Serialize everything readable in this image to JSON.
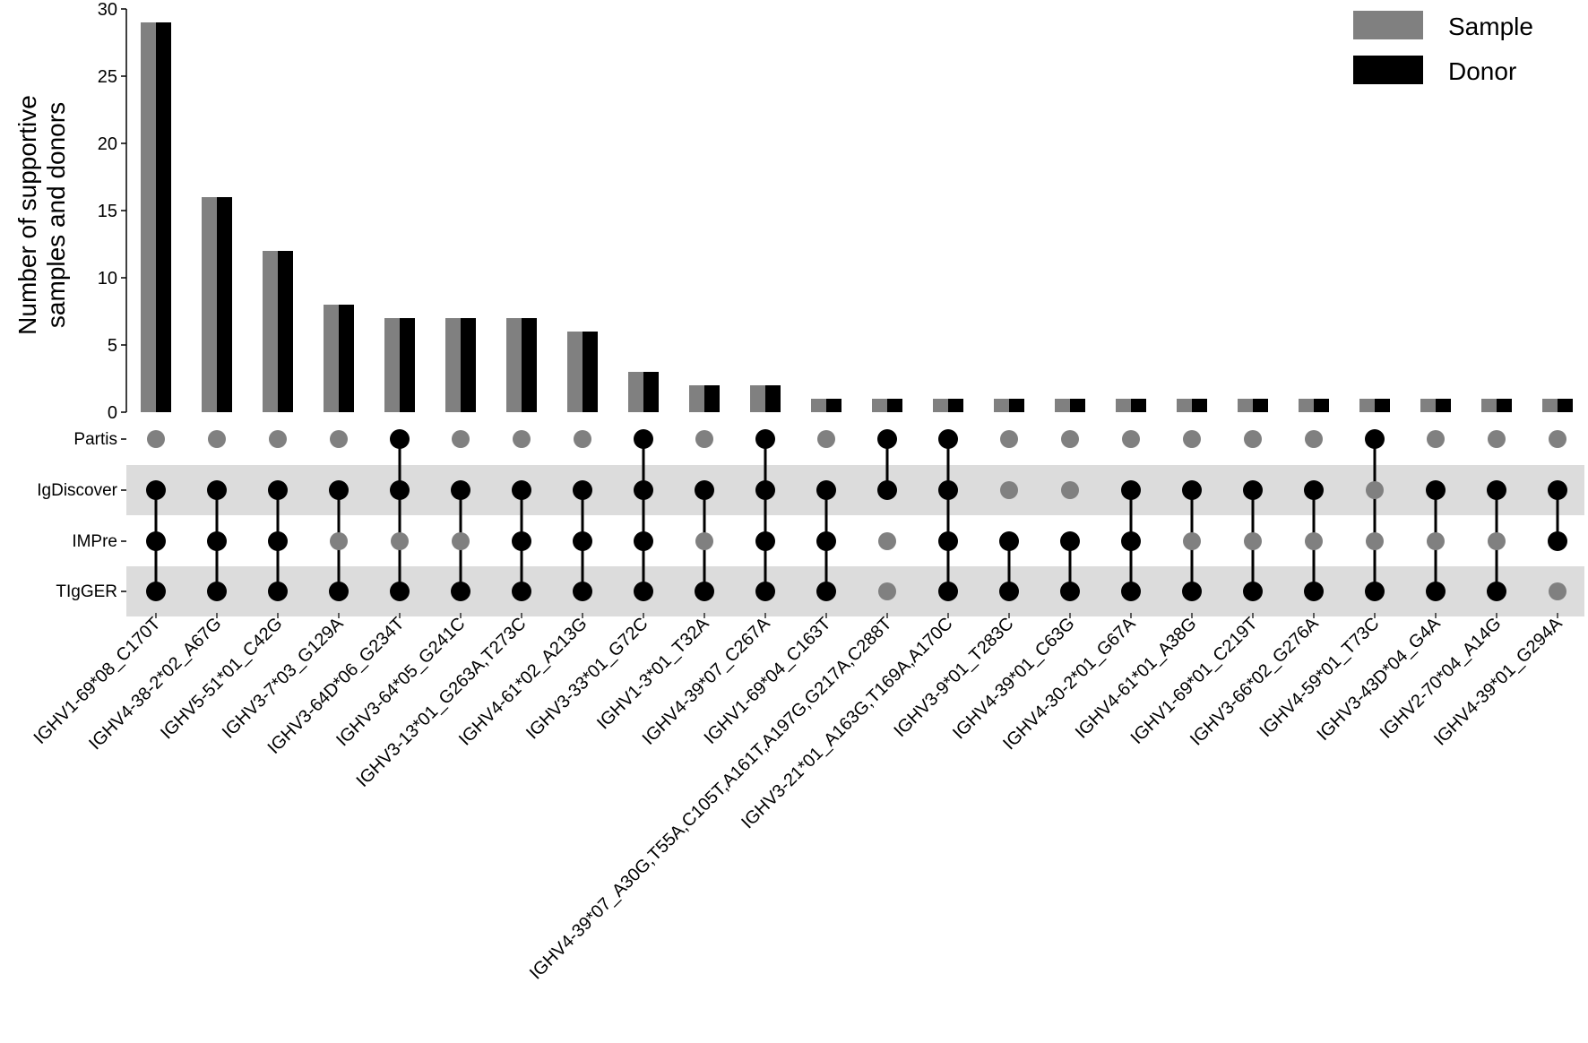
{
  "chart_data": {
    "type": "bar",
    "ylabel": "Number of supportive\nsamples and donors",
    "ylim": [
      0,
      30
    ],
    "yticks": [
      0,
      5,
      10,
      15,
      20,
      25,
      30
    ],
    "legend": {
      "position": "top-right",
      "entries": [
        {
          "name": "Sample",
          "color": "#808080"
        },
        {
          "name": "Donor",
          "color": "#000000"
        }
      ]
    },
    "categories": [
      "IGHV1-69*08_C170T",
      "IGHV4-38-2*02_A67G",
      "IGHV5-51*01_C42G",
      "IGHV3-7*03_G129A",
      "IGHV3-64D*06_G234T",
      "IGHV3-64*05_G241C",
      "IGHV3-13*01_G263A,T273C",
      "IGHV4-61*02_A213G",
      "IGHV3-33*01_G72C",
      "IGHV1-3*01_T32A",
      "IGHV4-39*07_C267A",
      "IGHV1-69*04_C163T",
      "IGHV4-39*07_A30G,T55A,C105T,A161T,A197G,G217A,C288T",
      "IGHV3-21*01_A163G,T169A,A170C",
      "IGHV3-9*01_T283C",
      "IGHV4-39*01_C63G",
      "IGHV4-30-2*01_G67A",
      "IGHV4-61*01_A38G",
      "IGHV1-69*01_C219T",
      "IGHV3-66*02_G276A",
      "IGHV4-59*01_T73C",
      "IGHV3-43D*04_G4A",
      "IGHV2-70*04_A14G",
      "IGHV4-39*01_G294A"
    ],
    "series": [
      {
        "name": "Sample",
        "color": "#808080",
        "values": [
          29,
          16,
          12,
          8,
          7,
          7,
          7,
          6,
          3,
          2,
          2,
          1,
          1,
          1,
          1,
          1,
          1,
          1,
          1,
          1,
          1,
          1,
          1,
          1
        ]
      },
      {
        "name": "Donor",
        "color": "#000000",
        "values": [
          29,
          16,
          12,
          8,
          7,
          7,
          7,
          6,
          3,
          2,
          2,
          1,
          1,
          1,
          1,
          1,
          1,
          1,
          1,
          1,
          1,
          1,
          1,
          1
        ]
      }
    ],
    "sets": [
      "Partis",
      "IgDiscover",
      "IMPre",
      "TIgGER"
    ],
    "membership": [
      [
        0,
        1,
        1,
        1
      ],
      [
        0,
        1,
        1,
        1
      ],
      [
        0,
        1,
        1,
        1
      ],
      [
        0,
        1,
        0,
        1
      ],
      [
        1,
        1,
        0,
        1
      ],
      [
        0,
        1,
        0,
        1
      ],
      [
        0,
        1,
        1,
        1
      ],
      [
        0,
        1,
        1,
        1
      ],
      [
        1,
        1,
        1,
        1
      ],
      [
        0,
        1,
        0,
        1
      ],
      [
        1,
        1,
        1,
        1
      ],
      [
        0,
        1,
        1,
        1
      ],
      [
        1,
        1,
        0,
        0
      ],
      [
        1,
        1,
        1,
        1
      ],
      [
        0,
        0,
        1,
        1
      ],
      [
        0,
        0,
        1,
        1
      ],
      [
        0,
        1,
        1,
        1
      ],
      [
        0,
        1,
        0,
        1
      ],
      [
        0,
        1,
        0,
        1
      ],
      [
        0,
        1,
        0,
        1
      ],
      [
        1,
        0,
        0,
        1
      ],
      [
        0,
        1,
        0,
        1
      ],
      [
        0,
        1,
        0,
        1
      ],
      [
        0,
        1,
        1,
        0
      ]
    ],
    "colors": {
      "active_dot": "#000000",
      "inactive_dot": "#808080",
      "band": "#dcdcdc"
    }
  }
}
